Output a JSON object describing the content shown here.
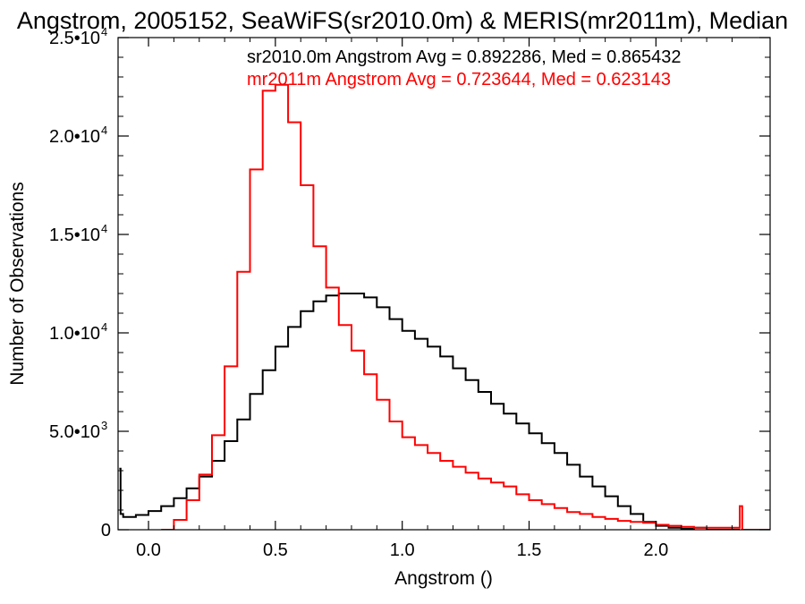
{
  "chart_data": {
    "type": "line",
    "title": "Angstrom, 2005152, SeaWiFS(sr2010.0m) & MERIS(mr2011m), Median",
    "xlabel": "Angstrom ()",
    "ylabel": "Number of Observations",
    "xlim": [
      -0.12,
      2.45
    ],
    "ylim": [
      0,
      25000
    ],
    "x_ticks": [
      {
        "value": 0.0,
        "label": "0.0"
      },
      {
        "value": 0.5,
        "label": "0.5"
      },
      {
        "value": 1.0,
        "label": "1.0"
      },
      {
        "value": 1.5,
        "label": "1.5"
      },
      {
        "value": 2.0,
        "label": "2.0"
      }
    ],
    "y_ticks": [
      {
        "value": 0,
        "mant": "0",
        "exp": ""
      },
      {
        "value": 5000,
        "mant": "5.0•10",
        "exp": "3"
      },
      {
        "value": 10000,
        "mant": "1.0•10",
        "exp": "4"
      },
      {
        "value": 15000,
        "mant": "1.5•10",
        "exp": "4"
      },
      {
        "value": 20000,
        "mant": "2.0•10",
        "exp": "4"
      },
      {
        "value": 25000,
        "mant": "2.5•10",
        "exp": "4"
      }
    ],
    "grid": false,
    "legend_position": "top-right",
    "series": [
      {
        "name": "sr2010.0m Angstrom Avg = 0.892286, Med = 0.865432",
        "color": "#000000",
        "x": [
          -0.115,
          -0.11,
          -0.1,
          -0.05,
          0.0,
          0.05,
          0.1,
          0.15,
          0.2,
          0.25,
          0.3,
          0.35,
          0.4,
          0.45,
          0.5,
          0.55,
          0.6,
          0.65,
          0.7,
          0.75,
          0.8,
          0.85,
          0.9,
          0.95,
          1.0,
          1.05,
          1.1,
          1.15,
          1.2,
          1.25,
          1.3,
          1.35,
          1.4,
          1.45,
          1.5,
          1.55,
          1.6,
          1.65,
          1.7,
          1.75,
          1.8,
          1.85,
          1.9,
          1.95,
          2.0,
          2.05,
          2.1,
          2.15,
          2.2,
          2.25,
          2.3,
          2.33
        ],
        "y": [
          3100,
          800,
          650,
          750,
          950,
          1200,
          1600,
          2100,
          2700,
          3500,
          4500,
          5600,
          6900,
          8100,
          9300,
          10300,
          11100,
          11600,
          11900,
          12000,
          12000,
          11800,
          11300,
          10700,
          10100,
          9700,
          9300,
          8800,
          8200,
          7600,
          7000,
          6400,
          5900,
          5400,
          4900,
          4400,
          3900,
          3300,
          2700,
          2200,
          1700,
          1200,
          800,
          400,
          200,
          100,
          50,
          100,
          0,
          0,
          0,
          0
        ]
      },
      {
        "name": "mr2011m Angstrom Avg = 0.723644, Med = 0.623143",
        "color": "#ff0000",
        "x": [
          0.05,
          0.1,
          0.15,
          0.2,
          0.25,
          0.3,
          0.35,
          0.4,
          0.45,
          0.5,
          0.55,
          0.6,
          0.65,
          0.7,
          0.75,
          0.8,
          0.85,
          0.9,
          0.95,
          1.0,
          1.05,
          1.1,
          1.15,
          1.2,
          1.25,
          1.3,
          1.35,
          1.4,
          1.45,
          1.5,
          1.55,
          1.6,
          1.65,
          1.7,
          1.75,
          1.8,
          1.85,
          1.9,
          1.95,
          2.0,
          2.05,
          2.1,
          2.15,
          2.2,
          2.25,
          2.3,
          2.33,
          2.34,
          2.45
        ],
        "y": [
          0,
          500,
          1500,
          2800,
          4800,
          8300,
          13100,
          18300,
          22300,
          22600,
          20700,
          17500,
          14400,
          12300,
          10400,
          9100,
          7900,
          6600,
          5500,
          4700,
          4300,
          3900,
          3500,
          3200,
          2900,
          2600,
          2400,
          2200,
          1800,
          1500,
          1300,
          1100,
          900,
          800,
          650,
          550,
          450,
          400,
          350,
          250,
          200,
          150,
          100,
          100,
          100,
          100,
          1200,
          0,
          0
        ]
      }
    ]
  }
}
